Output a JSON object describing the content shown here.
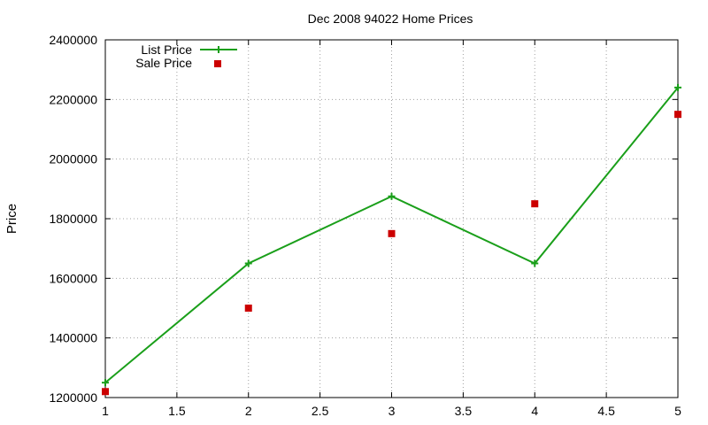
{
  "chart_data": {
    "type": "line",
    "title": "Dec 2008 94022 Home Prices",
    "xlabel": "",
    "ylabel": "Price",
    "xlim": [
      1,
      5
    ],
    "ylim": [
      1200000,
      2400000
    ],
    "xticks": [
      "1",
      "1.5",
      "2",
      "2.5",
      "3",
      "3.5",
      "4",
      "4.5",
      "5"
    ],
    "yticks": [
      "1200000",
      "1400000",
      "1600000",
      "1800000",
      "2000000",
      "2200000",
      "2400000"
    ],
    "grid": true,
    "legend_position": "top-left",
    "x": [
      1,
      2,
      3,
      4,
      5
    ],
    "series": [
      {
        "name": "List Price",
        "style": "line-with-plus-markers",
        "color": "#1a9f1a",
        "values": [
          1250000,
          1650000,
          1875000,
          1650000,
          2240000
        ]
      },
      {
        "name": "Sale Price",
        "style": "square-markers",
        "color": "#cc0000",
        "values": [
          1220000,
          1500000,
          1750000,
          1850000,
          2150000
        ]
      }
    ]
  }
}
